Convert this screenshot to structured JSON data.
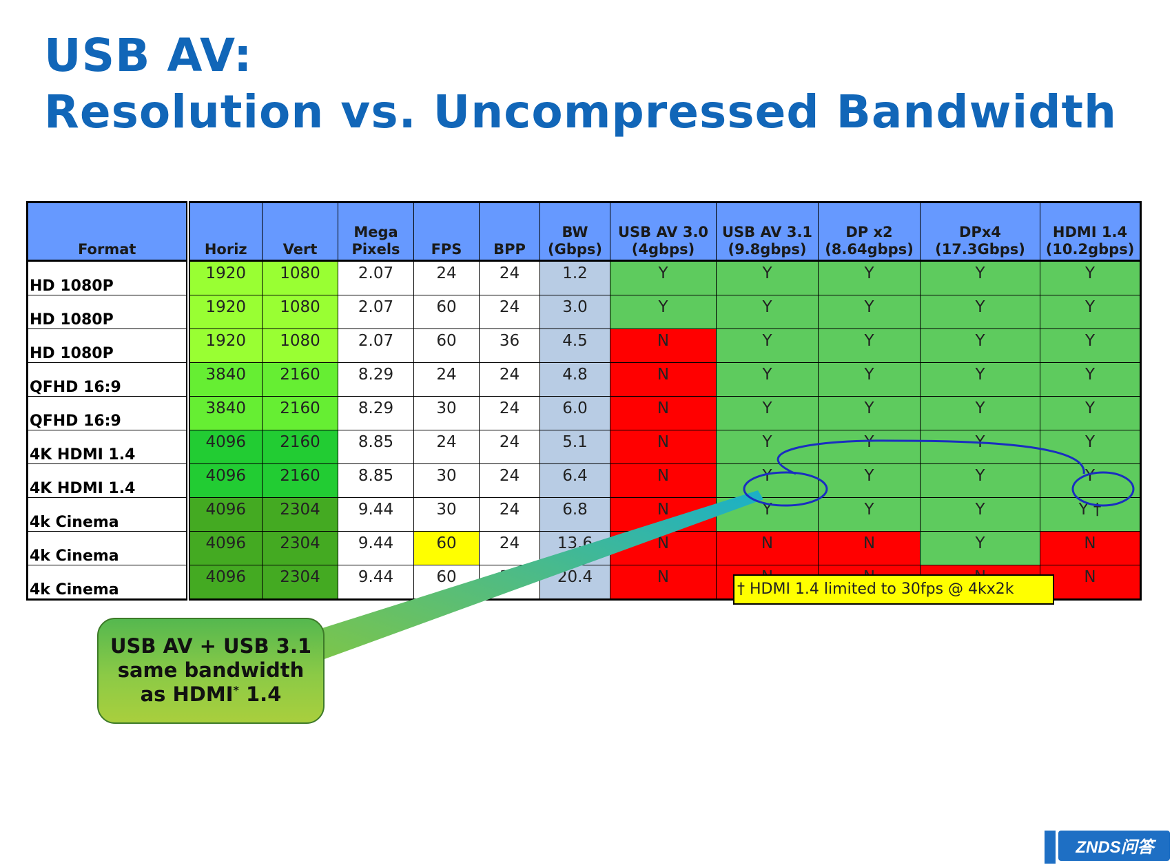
{
  "title": {
    "line1": "USB AV:",
    "line2": "Resolution vs. Uncompressed Bandwidth"
  },
  "table": {
    "headers": [
      "Format",
      "Horiz",
      "Vert",
      "Mega Pixels",
      "FPS",
      "BPP",
      "BW (Gbps)",
      "USB AV 3.0 (4gbps)",
      "USB AV 3.1 (9.8gbps)",
      "DP x2 (8.64gbps)",
      "DPx4 (17.3Gbps)",
      "HDMI 1.4 (10.2gbps)"
    ],
    "rows": [
      [
        "HD  1080P",
        "1920",
        "1080",
        "2.07",
        "24",
        "24",
        "1.2",
        "Y",
        "Y",
        "Y",
        "Y",
        "Y"
      ],
      [
        "HD  1080P",
        "1920",
        "1080",
        "2.07",
        "60",
        "24",
        "3.0",
        "Y",
        "Y",
        "Y",
        "Y",
        "Y"
      ],
      [
        "HD  1080P",
        "1920",
        "1080",
        "2.07",
        "60",
        "36",
        "4.5",
        "N",
        "Y",
        "Y",
        "Y",
        "Y"
      ],
      [
        "QFHD  16:9",
        "3840",
        "2160",
        "8.29",
        "24",
        "24",
        "4.8",
        "N",
        "Y",
        "Y",
        "Y",
        "Y"
      ],
      [
        "QFHD  16:9",
        "3840",
        "2160",
        "8.29",
        "30",
        "24",
        "6.0",
        "N",
        "Y",
        "Y",
        "Y",
        "Y"
      ],
      [
        "4K HDMI 1.4",
        "4096",
        "2160",
        "8.85",
        "24",
        "24",
        "5.1",
        "N",
        "Y",
        "Y",
        "Y",
        "Y"
      ],
      [
        "4K HDMI 1.4",
        "4096",
        "2160",
        "8.85",
        "30",
        "24",
        "6.4",
        "N",
        "Y",
        "Y",
        "Y",
        "Y"
      ],
      [
        "4k Cinema",
        "4096",
        "2304",
        "9.44",
        "30",
        "24",
        "6.8",
        "N",
        "Y",
        "Y",
        "Y",
        "Y †"
      ],
      [
        "4k Cinema",
        "4096",
        "2304",
        "9.44",
        "60",
        "24",
        "13.6",
        "N",
        "N",
        "N",
        "Y",
        "N"
      ],
      [
        "4k Cinema",
        "4096",
        "2304",
        "9.44",
        "60",
        "36",
        "20.4",
        "N",
        "N",
        "N",
        "N",
        "N"
      ]
    ]
  },
  "footnote": "† HDMI 1.4 limited to 30fps @ 4kx2k",
  "callout": {
    "line1": "USB AV + USB 3.1",
    "line2": "same bandwidth",
    "line3_pre": "as HDMI",
    "line3_sup": "*",
    "line3_post": " 1.4"
  },
  "watermark": "ZNDS问答",
  "colors": {
    "title": "#1166b8",
    "header": "#6699ff",
    "yes": "#5ecb5e",
    "no": "#ff0000",
    "bw": "#b8cce4",
    "highlight": "#ffff00",
    "annotation": "#1a2ec0"
  }
}
